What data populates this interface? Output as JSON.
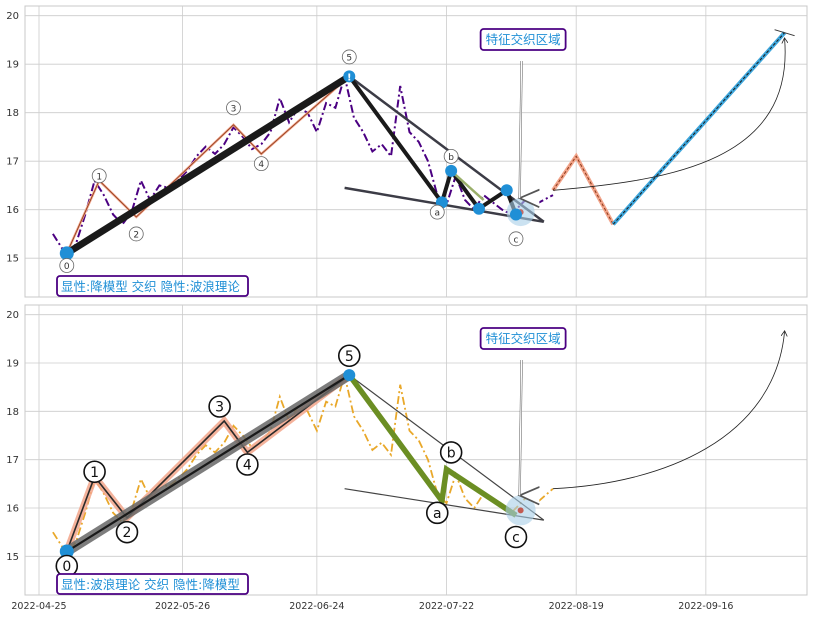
{
  "colors": {
    "grid": "#cccccc",
    "axis_border": "#c8c8c8",
    "top_price_line": "#4b0082",
    "bottom_price_line": "#e9a82a",
    "blue_point": "#1f8fd6",
    "label_border_purple": "#4b0082",
    "label_text_blue": "#1f8fd6",
    "wave_black": "#1a1a1a",
    "wave_dark_gray": "#3c3c46",
    "wave_green": "#6b8e23",
    "wave_salmon": "#f2a48a",
    "wave_brown": "#8b3a1a",
    "olive_line": "#9aaf6a",
    "forecast_blue": "#3ea7dd",
    "target_red": "#c0392b"
  },
  "x_ticks": [
    "2022-04-25",
    "2022-05-26",
    "2022-06-24",
    "2022-07-22",
    "2022-08-19",
    "2022-09-16"
  ],
  "chart_data": [
    {
      "type": "line",
      "panel": "top",
      "y_ticks": [
        "15",
        "16",
        "17",
        "18",
        "19",
        "20"
      ],
      "ylim": [
        14.2,
        20.2
      ],
      "x_range": [
        "2022-04-25",
        "2022-10-10"
      ],
      "grid": true,
      "legend_box": "显性:降模型 交织 隐性:波浪理论",
      "zone_label": "特征交织区域",
      "price_series": [
        [
          "2022-04-28",
          15.5
        ],
        [
          "2022-05-01",
          15.05
        ],
        [
          "2022-05-03",
          15.3
        ],
        [
          "2022-05-05",
          15.9
        ],
        [
          "2022-05-07",
          16.6
        ],
        [
          "2022-05-09",
          16.3
        ],
        [
          "2022-05-11",
          15.9
        ],
        [
          "2022-05-13",
          15.7
        ],
        [
          "2022-05-15",
          15.95
        ],
        [
          "2022-05-17",
          16.6
        ],
        [
          "2022-05-19",
          16.2
        ],
        [
          "2022-05-21",
          16.5
        ],
        [
          "2022-05-23",
          16.45
        ],
        [
          "2022-05-25",
          16.6
        ],
        [
          "2022-05-27",
          16.8
        ],
        [
          "2022-05-29",
          17.1
        ],
        [
          "2022-05-31",
          17.3
        ],
        [
          "2022-06-02",
          17.15
        ],
        [
          "2022-06-04",
          17.35
        ],
        [
          "2022-06-06",
          17.7
        ],
        [
          "2022-06-08",
          17.5
        ],
        [
          "2022-06-10",
          17.25
        ],
        [
          "2022-06-12",
          17.35
        ],
        [
          "2022-06-14",
          17.6
        ],
        [
          "2022-06-16",
          18.3
        ],
        [
          "2022-06-18",
          17.8
        ],
        [
          "2022-06-20",
          18.1
        ],
        [
          "2022-06-22",
          18.0
        ],
        [
          "2022-06-24",
          17.6
        ],
        [
          "2022-06-26",
          18.2
        ],
        [
          "2022-06-28",
          18.1
        ],
        [
          "2022-06-30",
          18.75
        ],
        [
          "2022-07-02",
          17.9
        ],
        [
          "2022-07-04",
          17.6
        ],
        [
          "2022-07-06",
          17.2
        ],
        [
          "2022-07-08",
          17.35
        ],
        [
          "2022-07-10",
          17.1
        ],
        [
          "2022-07-12",
          18.55
        ],
        [
          "2022-07-14",
          17.6
        ],
        [
          "2022-07-16",
          17.4
        ],
        [
          "2022-07-18",
          17.0
        ],
        [
          "2022-07-20",
          16.3
        ],
        [
          "2022-07-22",
          16.1
        ],
        [
          "2022-07-24",
          16.7
        ],
        [
          "2022-07-26",
          16.2
        ],
        [
          "2022-07-28",
          16.0
        ],
        [
          "2022-07-30",
          16.3
        ],
        [
          "2022-08-01",
          16.15
        ],
        [
          "2022-08-03",
          16.0
        ],
        [
          "2022-08-05",
          15.9
        ],
        [
          "2022-08-08",
          16.2
        ],
        [
          "2022-08-11",
          16.15
        ],
        [
          "2022-08-14",
          16.3
        ]
      ],
      "wave_labels": [
        {
          "label": "0",
          "date": "2022-05-01",
          "value": 14.85
        },
        {
          "label": "1",
          "date": "2022-05-08",
          "value": 16.7
        },
        {
          "label": "2",
          "date": "2022-05-16",
          "value": 15.5
        },
        {
          "label": "3",
          "date": "2022-06-06",
          "value": 18.1
        },
        {
          "label": "4",
          "date": "2022-06-12",
          "value": 16.95
        },
        {
          "label": "5",
          "date": "2022-07-01",
          "value": 19.15
        },
        {
          "label": "a",
          "date": "2022-07-20",
          "value": 15.95
        },
        {
          "label": "b",
          "date": "2022-07-23",
          "value": 17.1
        },
        {
          "label": "c",
          "date": "2022-08-06",
          "value": 15.4
        }
      ],
      "key_points": [
        [
          "2022-05-01",
          15.1
        ],
        [
          "2022-07-01",
          18.75
        ],
        [
          "2022-07-21",
          16.15
        ],
        [
          "2022-07-23",
          16.8
        ],
        [
          "2022-07-29",
          16.02
        ],
        [
          "2022-08-04",
          16.4
        ],
        [
          "2022-08-06",
          15.9
        ]
      ],
      "forecast": [
        [
          "2022-08-14",
          16.4
        ],
        [
          "2022-08-19",
          17.1
        ],
        [
          "2022-08-27",
          15.7
        ],
        [
          "2022-10-03",
          19.65
        ]
      ]
    },
    {
      "type": "line",
      "panel": "bottom",
      "y_ticks": [
        "15",
        "16",
        "17",
        "18",
        "19",
        "20"
      ],
      "ylim": [
        14.2,
        20.2
      ],
      "x_range": [
        "2022-04-25",
        "2022-10-10"
      ],
      "grid": true,
      "legend_box": "显性:波浪理论 交织 隐性:降模型",
      "zone_label": "特征交织区域",
      "price_series": [
        [
          "2022-04-28",
          15.5
        ],
        [
          "2022-05-01",
          15.05
        ],
        [
          "2022-05-03",
          15.3
        ],
        [
          "2022-05-05",
          15.9
        ],
        [
          "2022-05-07",
          16.6
        ],
        [
          "2022-05-09",
          16.3
        ],
        [
          "2022-05-11",
          15.9
        ],
        [
          "2022-05-13",
          15.7
        ],
        [
          "2022-05-15",
          15.95
        ],
        [
          "2022-05-17",
          16.6
        ],
        [
          "2022-05-19",
          16.2
        ],
        [
          "2022-05-21",
          16.5
        ],
        [
          "2022-05-23",
          16.45
        ],
        [
          "2022-05-25",
          16.6
        ],
        [
          "2022-05-27",
          16.8
        ],
        [
          "2022-05-29",
          17.1
        ],
        [
          "2022-05-31",
          17.3
        ],
        [
          "2022-06-02",
          17.15
        ],
        [
          "2022-06-04",
          17.35
        ],
        [
          "2022-06-06",
          17.7
        ],
        [
          "2022-06-08",
          17.5
        ],
        [
          "2022-06-10",
          17.25
        ],
        [
          "2022-06-12",
          17.35
        ],
        [
          "2022-06-14",
          17.6
        ],
        [
          "2022-06-16",
          18.3
        ],
        [
          "2022-06-18",
          17.8
        ],
        [
          "2022-06-20",
          18.1
        ],
        [
          "2022-06-22",
          18.0
        ],
        [
          "2022-06-24",
          17.6
        ],
        [
          "2022-06-26",
          18.2
        ],
        [
          "2022-06-28",
          18.1
        ],
        [
          "2022-06-30",
          18.75
        ],
        [
          "2022-07-02",
          17.9
        ],
        [
          "2022-07-04",
          17.6
        ],
        [
          "2022-07-06",
          17.2
        ],
        [
          "2022-07-08",
          17.35
        ],
        [
          "2022-07-10",
          17.1
        ],
        [
          "2022-07-12",
          18.55
        ],
        [
          "2022-07-14",
          17.6
        ],
        [
          "2022-07-16",
          17.4
        ],
        [
          "2022-07-18",
          17.0
        ],
        [
          "2022-07-20",
          16.3
        ],
        [
          "2022-07-22",
          16.1
        ],
        [
          "2022-07-24",
          16.7
        ],
        [
          "2022-07-26",
          16.2
        ],
        [
          "2022-07-28",
          16.0
        ],
        [
          "2022-07-30",
          16.3
        ],
        [
          "2022-08-01",
          16.15
        ],
        [
          "2022-08-03",
          16.0
        ],
        [
          "2022-08-05",
          15.9
        ],
        [
          "2022-08-08",
          16.2
        ],
        [
          "2022-08-11",
          16.15
        ],
        [
          "2022-08-14",
          16.4
        ]
      ],
      "wave_labels": [
        {
          "label": "0",
          "date": "2022-05-01",
          "value": 14.8
        },
        {
          "label": "1",
          "date": "2022-05-07",
          "value": 16.75
        },
        {
          "label": "2",
          "date": "2022-05-14",
          "value": 15.5
        },
        {
          "label": "3",
          "date": "2022-06-03",
          "value": 18.1
        },
        {
          "label": "4",
          "date": "2022-06-09",
          "value": 16.9
        },
        {
          "label": "5",
          "date": "2022-07-01",
          "value": 19.15
        },
        {
          "label": "a",
          "date": "2022-07-20",
          "value": 15.9
        },
        {
          "label": "b",
          "date": "2022-07-23",
          "value": 17.15
        },
        {
          "label": "c",
          "date": "2022-08-06",
          "value": 15.4
        }
      ],
      "key_points": [
        [
          "2022-05-01",
          15.1
        ],
        [
          "2022-07-01",
          18.75
        ]
      ],
      "forecast": []
    }
  ]
}
